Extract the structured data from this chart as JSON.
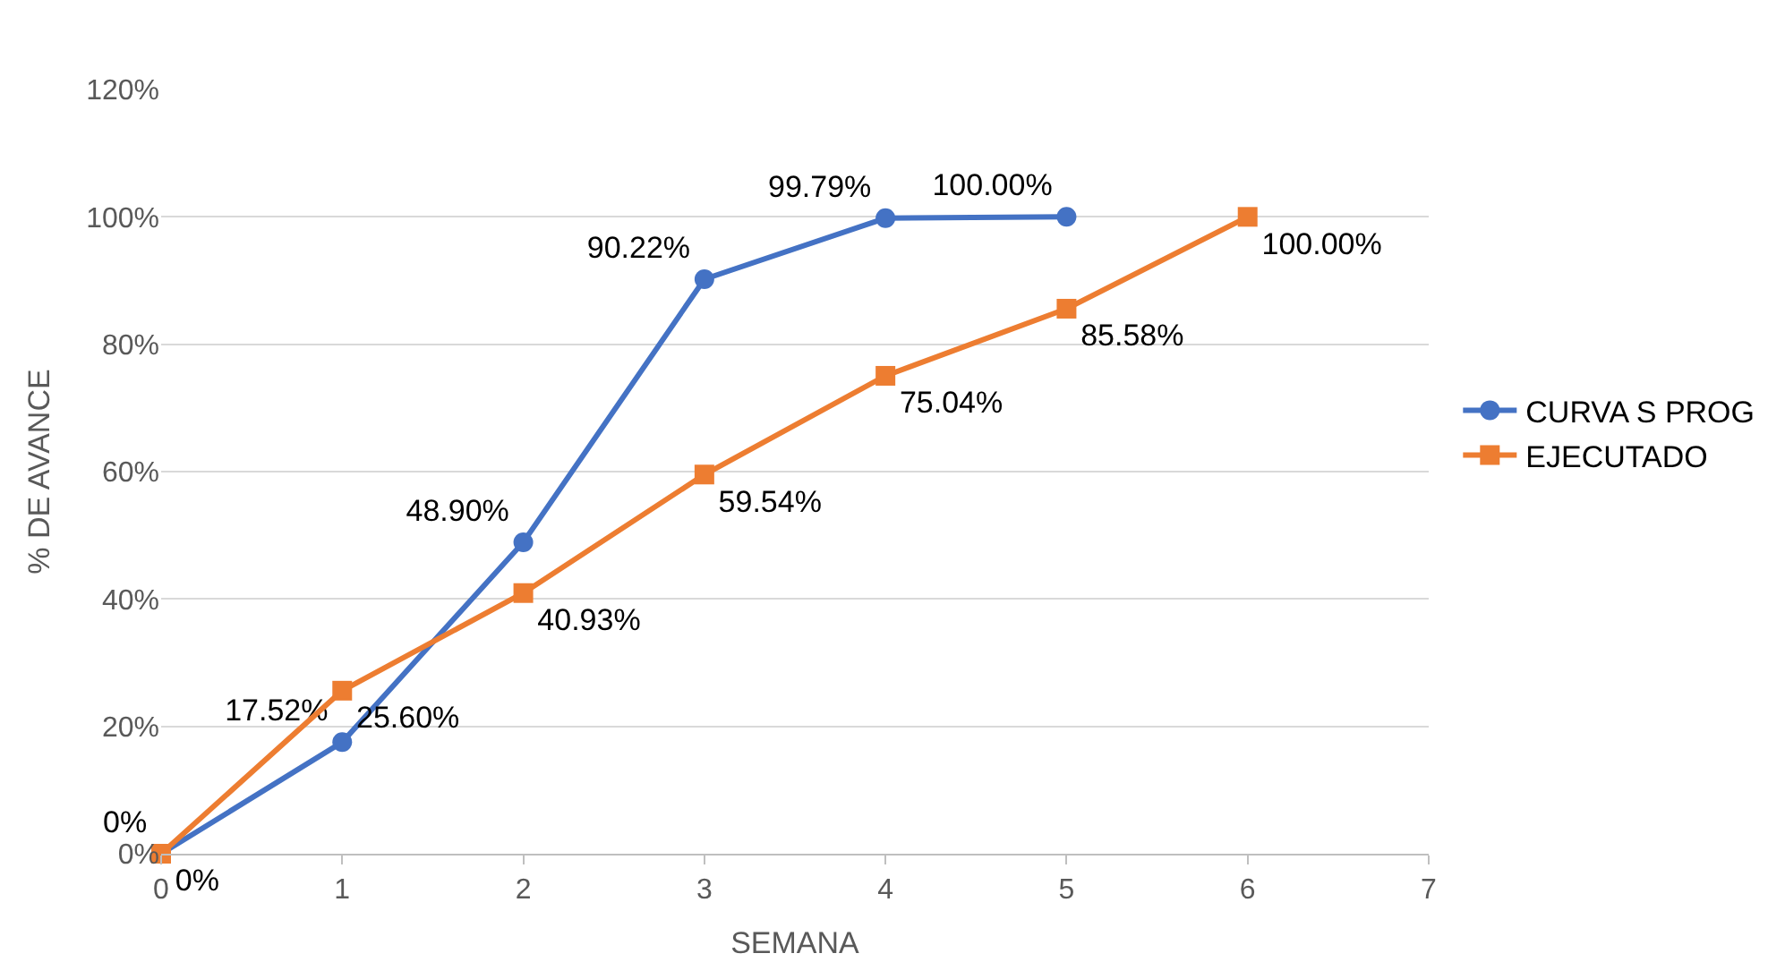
{
  "chart_data": {
    "type": "line",
    "xlabel": "SEMANA",
    "ylabel": "% DE AVANCE",
    "xlim": [
      0,
      7
    ],
    "xticks": [
      0,
      1,
      2,
      3,
      4,
      5,
      6,
      7
    ],
    "ylim": [
      0,
      120
    ],
    "yticks": [
      {
        "value": 0,
        "label": "0%"
      },
      {
        "value": 20,
        "label": "20%"
      },
      {
        "value": 40,
        "label": "40%"
      },
      {
        "value": 60,
        "label": "60%"
      },
      {
        "value": 80,
        "label": "80%"
      },
      {
        "value": 100,
        "label": "100%"
      },
      {
        "value": 120,
        "label": "120%"
      }
    ],
    "grid": "y",
    "legend": "right",
    "series": [
      {
        "name": "CURVA S PROG",
        "color": "#4472c4",
        "marker": "circle",
        "x": [
          0,
          1,
          2,
          3,
          4,
          5
        ],
        "values": [
          0,
          17.52,
          48.9,
          90.22,
          99.79,
          100.0
        ],
        "value_labels": [
          "0%",
          "17.52%",
          "48.90%",
          "90.22%",
          "99.79%",
          "100.00%"
        ]
      },
      {
        "name": "EJECUTADO",
        "color": "#ed7d31",
        "marker": "square",
        "x": [
          0,
          1,
          2,
          3,
          4,
          5,
          6
        ],
        "values": [
          0,
          25.6,
          40.93,
          59.54,
          75.04,
          85.58,
          100.0
        ],
        "value_labels": [
          "0%",
          "25.60%",
          "40.93%",
          "59.54%",
          "75.04%",
          "85.58%",
          "100.00%"
        ]
      }
    ]
  }
}
